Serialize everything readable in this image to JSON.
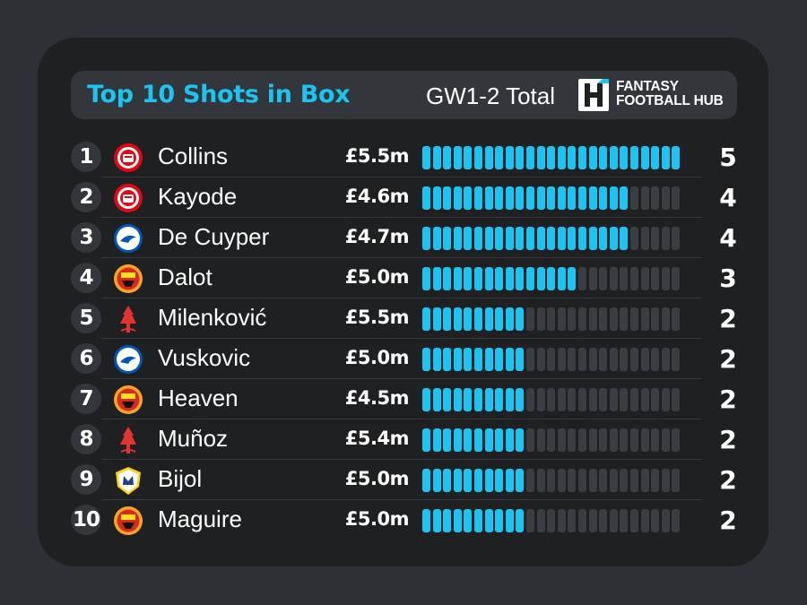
{
  "header": {
    "title": "Top 10 Shots in Box",
    "subtitle": "GW1-2 Total",
    "logo_line1": "FANTASY",
    "logo_line2": "FOOTBALL HUB"
  },
  "colors": {
    "accent": "#1cc4f2",
    "bar_empty": "#3a3e42",
    "card": "#1e2022",
    "background": "#2d3135"
  },
  "chart_data": {
    "type": "bar",
    "title": "Top 10 Shots in Box",
    "subtitle": "GW1-2 Total",
    "max_value": 5,
    "segments_per_bar": 25,
    "rows": [
      {
        "rank": "1",
        "player": "Collins",
        "club_icon": "brentford-crest",
        "price": "£5.5m",
        "value": 5
      },
      {
        "rank": "2",
        "player": "Kayode",
        "club_icon": "brentford-crest",
        "price": "£4.6m",
        "value": 4
      },
      {
        "rank": "3",
        "player": "De Cuyper",
        "club_icon": "brighton-crest",
        "price": "£4.7m",
        "value": 4
      },
      {
        "rank": "4",
        "player": "Dalot",
        "club_icon": "man-utd-crest",
        "price": "£5.0m",
        "value": 3
      },
      {
        "rank": "5",
        "player": "Milenković",
        "club_icon": "nottingham-forest-crest",
        "price": "£5.5m",
        "value": 2
      },
      {
        "rank": "6",
        "player": "Vuskovic",
        "club_icon": "brighton-crest",
        "price": "£5.0m",
        "value": 2
      },
      {
        "rank": "7",
        "player": "Heaven",
        "club_icon": "man-utd-crest",
        "price": "£4.5m",
        "value": 2
      },
      {
        "rank": "8",
        "player": "Muñoz",
        "club_icon": "nottingham-forest-crest",
        "price": "£5.4m",
        "value": 2
      },
      {
        "rank": "9",
        "player": "Bijol",
        "club_icon": "leeds-crest",
        "price": "£5.0m",
        "value": 2
      },
      {
        "rank": "10",
        "player": "Maguire",
        "club_icon": "man-utd-crest",
        "price": "£5.0m",
        "value": 2
      }
    ]
  }
}
